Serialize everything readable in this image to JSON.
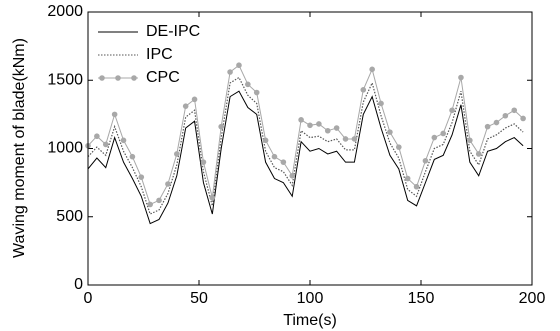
{
  "chart_data": {
    "type": "line",
    "xlabel": "Time(s)",
    "ylabel": "Waving moment of blade(kNm)",
    "x": [
      0,
      4,
      8,
      12,
      16,
      20,
      24,
      28,
      32,
      36,
      40,
      44,
      48,
      52,
      56,
      60,
      64,
      68,
      72,
      76,
      80,
      84,
      88,
      92,
      96,
      100,
      104,
      108,
      112,
      116,
      120,
      124,
      128,
      132,
      136,
      140,
      144,
      148,
      152,
      156,
      160,
      164,
      168,
      172,
      176,
      180,
      184,
      188,
      192,
      196
    ],
    "series": [
      {
        "name": "DE-IPC",
        "color": "#000000",
        "style": "solid",
        "marker": false,
        "values": [
          850,
          930,
          860,
          1080,
          900,
          780,
          650,
          450,
          480,
          600,
          800,
          1150,
          1200,
          750,
          520,
          1000,
          1380,
          1420,
          1300,
          1250,
          900,
          780,
          750,
          650,
          1050,
          980,
          1000,
          960,
          980,
          900,
          900,
          1250,
          1380,
          1150,
          950,
          850,
          620,
          580,
          750,
          920,
          950,
          1100,
          1320,
          900,
          800,
          980,
          1000,
          1050,
          1080,
          1020
        ]
      },
      {
        "name": "IPC",
        "color": "#555555",
        "style": "dotted",
        "marker": false,
        "values": [
          940,
          1010,
          950,
          1160,
          980,
          860,
          720,
          520,
          550,
          670,
          880,
          1230,
          1280,
          830,
          580,
          1080,
          1480,
          1520,
          1390,
          1330,
          980,
          860,
          830,
          730,
          1130,
          1080,
          1090,
          1050,
          1070,
          990,
          990,
          1340,
          1480,
          1240,
          1040,
          930,
          700,
          650,
          830,
          1000,
          1030,
          1190,
          1420,
          980,
          880,
          1070,
          1100,
          1150,
          1180,
          1120
        ]
      },
      {
        "name": "CPC",
        "color": "#a8a8a8",
        "style": "solid",
        "marker": true,
        "values": [
          1020,
          1090,
          1030,
          1250,
          1060,
          940,
          790,
          590,
          620,
          740,
          960,
          1310,
          1360,
          900,
          640,
          1160,
          1560,
          1610,
          1470,
          1410,
          1060,
          940,
          900,
          800,
          1210,
          1170,
          1180,
          1130,
          1150,
          1070,
          1070,
          1430,
          1580,
          1330,
          1120,
          1010,
          780,
          720,
          910,
          1080,
          1110,
          1280,
          1520,
          1060,
          960,
          1160,
          1190,
          1240,
          1280,
          1220
        ]
      }
    ],
    "xlim": [
      0,
      200
    ],
    "xticks": [
      0,
      50,
      100,
      150,
      200
    ],
    "ylim": [
      0,
      2000
    ],
    "yticks": [
      0,
      500,
      1000,
      1500,
      2000
    ],
    "legend": "upper left",
    "grid": false
  }
}
